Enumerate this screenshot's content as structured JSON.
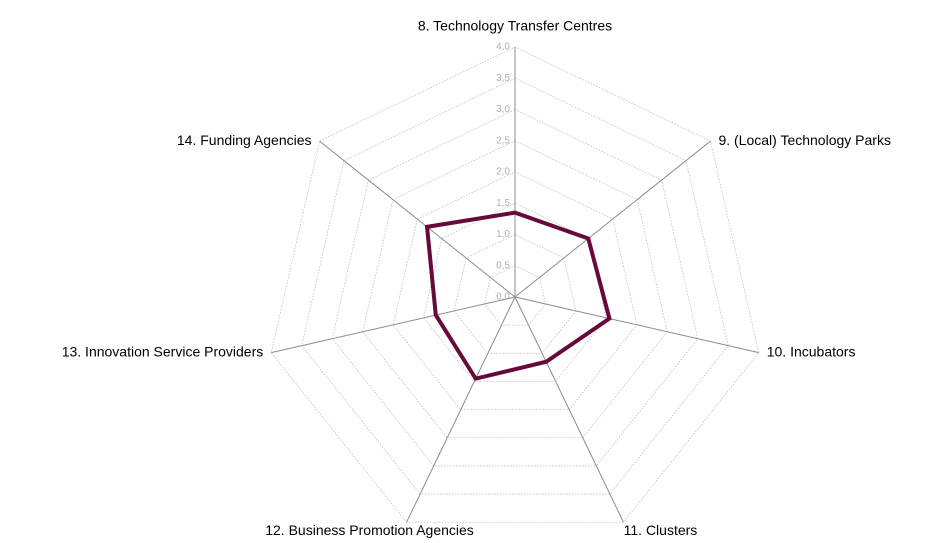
{
  "chart_data": {
    "type": "radar",
    "categories": [
      "8. Technology Transfer Centres",
      "9. (Local) Technology Parks",
      "10. Incubators",
      "11. Clusters",
      "12. Business Promotion Agencies",
      "13. Innovation Service Providers",
      "14. Funding Agencies"
    ],
    "values": [
      1.35,
      1.5,
      1.55,
      1.15,
      1.45,
      1.3,
      1.8
    ],
    "color": "#650a3b",
    "ylim": [
      0,
      4
    ],
    "yticks": [
      {
        "value": 0,
        "label": "0,0"
      },
      {
        "value": 0.5,
        "label": "0,5"
      },
      {
        "value": 1,
        "label": "1,0"
      },
      {
        "value": 1.5,
        "label": "1,5"
      },
      {
        "value": 2,
        "label": "2,0"
      },
      {
        "value": 2.5,
        "label": "2,5"
      },
      {
        "value": 3,
        "label": "3,0"
      },
      {
        "value": 3.5,
        "label": "3,5"
      },
      {
        "value": 4,
        "label": "4,0"
      }
    ],
    "grid": true
  }
}
